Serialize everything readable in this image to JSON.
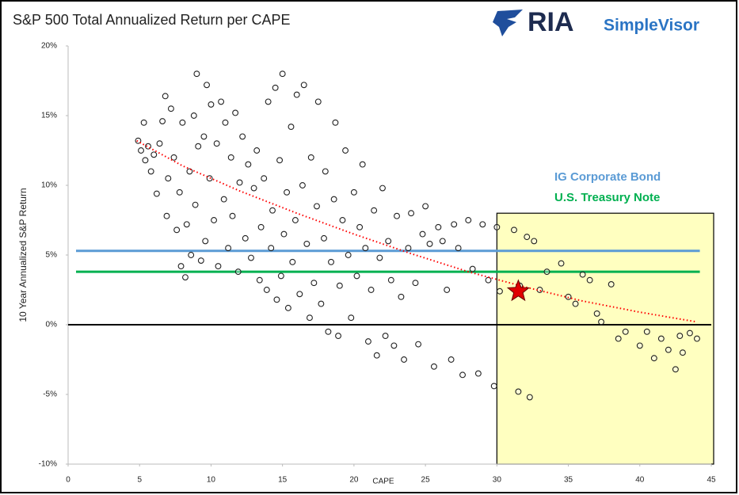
{
  "chart_data": {
    "type": "scatter",
    "title": "S&P 500 Total Annualized Return per CAPE",
    "logo": {
      "brand": "RIA",
      "product": "SimpleVisor"
    },
    "x_label": "CAPE",
    "y_label": "10 Year Annualized S&P Return",
    "xlim": [
      0,
      45
    ],
    "ylim": [
      -10,
      20
    ],
    "xticks": [
      0,
      5,
      10,
      15,
      20,
      25,
      30,
      35,
      40,
      45
    ],
    "yticks": [
      {
        "value": -10,
        "label": "-10%"
      },
      {
        "value": -5,
        "label": "-5%"
      },
      {
        "value": 0,
        "label": "0%"
      },
      {
        "value": 5,
        "label": "5%"
      },
      {
        "value": 10,
        "label": "10%"
      },
      {
        "value": 15,
        "label": "15%"
      },
      {
        "value": 20,
        "label": "20%"
      }
    ],
    "series": [
      {
        "color": "#222222",
        "x": [
          4.9,
          5.1,
          5.3,
          5.4,
          5.6,
          5.8,
          6.0,
          6.2,
          6.4,
          6.6,
          6.8,
          6.9,
          7.0,
          7.2,
          7.4,
          7.6,
          7.8,
          7.9,
          8.0,
          8.2,
          8.3,
          8.5,
          8.6,
          8.8,
          8.9,
          9.0,
          9.1,
          9.3,
          9.5,
          9.6,
          9.7,
          9.9,
          10.0,
          10.2,
          10.4,
          10.5,
          10.7,
          10.9,
          11.0,
          11.2,
          11.4,
          11.5,
          11.7,
          11.9,
          12.0,
          12.2,
          12.4,
          12.6,
          12.8,
          13.0,
          13.2,
          13.4,
          13.5,
          13.7,
          13.9,
          14.0,
          14.2,
          14.3,
          14.5,
          14.6,
          14.8,
          14.9,
          15.0,
          15.1,
          15.3,
          15.4,
          15.6,
          15.7,
          15.9,
          16.0,
          16.2,
          16.4,
          16.5,
          16.7,
          16.9,
          17.0,
          17.2,
          17.4,
          17.5,
          17.7,
          17.9,
          18.0,
          18.2,
          18.4,
          18.6,
          18.7,
          18.9,
          19.0,
          19.2,
          19.4,
          19.6,
          19.8,
          20.0,
          20.2,
          20.4,
          20.6,
          20.8,
          21.0,
          21.2,
          21.4,
          21.6,
          21.8,
          22.0,
          22.2,
          22.4,
          22.6,
          22.8,
          23.0,
          23.3,
          23.5,
          23.8,
          24.0,
          24.3,
          24.5,
          24.8,
          25.0,
          25.3,
          25.6,
          25.9,
          26.2,
          26.5,
          26.8,
          27.0,
          27.3,
          27.6,
          28.0,
          28.3,
          28.7,
          29.0,
          29.4,
          29.8,
          30.0,
          30.2,
          31.2,
          31.5,
          31.6,
          32.1,
          32.3,
          32.6,
          33.0,
          33.5,
          34.5,
          35.0,
          35.5,
          36.0,
          36.5,
          37.0,
          37.3,
          38.0,
          38.5,
          39.0,
          40.0,
          40.5,
          41.0,
          41.5,
          42.0,
          42.5,
          42.8,
          43.0,
          43.5,
          44.0
        ],
        "values": [
          13.2,
          12.5,
          14.5,
          11.8,
          12.8,
          11.0,
          12.2,
          9.4,
          13.0,
          14.6,
          16.4,
          7.8,
          10.5,
          15.5,
          12.0,
          6.8,
          9.5,
          4.2,
          14.5,
          3.4,
          7.2,
          11.0,
          5.0,
          15.0,
          8.6,
          18.0,
          12.8,
          4.6,
          13.5,
          6.0,
          17.2,
          10.5,
          15.8,
          7.5,
          13.0,
          4.2,
          16.0,
          9.0,
          14.5,
          5.5,
          12.0,
          7.8,
          15.2,
          3.8,
          10.2,
          13.5,
          6.2,
          11.5,
          4.8,
          9.8,
          12.5,
          3.2,
          7.0,
          10.5,
          2.5,
          16.0,
          5.5,
          8.2,
          17.0,
          1.8,
          11.8,
          3.5,
          18.0,
          6.5,
          9.5,
          1.2,
          14.2,
          4.5,
          7.5,
          16.5,
          2.2,
          10.0,
          17.2,
          5.8,
          0.5,
          12.0,
          3.0,
          8.5,
          16.0,
          1.5,
          6.2,
          11.0,
          -0.5,
          4.5,
          9.0,
          14.5,
          -0.8,
          2.8,
          7.5,
          12.5,
          5.0,
          0.5,
          9.5,
          3.5,
          7.0,
          11.5,
          5.5,
          -1.2,
          2.5,
          8.2,
          -2.2,
          4.8,
          9.8,
          -0.8,
          6.0,
          3.2,
          -1.5,
          7.8,
          2.0,
          -2.5,
          5.5,
          8.0,
          3.0,
          -1.4,
          6.5,
          8.5,
          5.8,
          -3.0,
          7.0,
          6.0,
          2.5,
          -2.5,
          7.2,
          5.5,
          -3.6,
          7.5,
          4.0,
          -3.5,
          7.2,
          3.2,
          -4.4,
          7.0,
          2.4,
          6.8,
          -4.8,
          2.8,
          6.3,
          -5.2,
          6.0,
          2.5,
          3.8,
          4.4,
          2.0,
          1.5,
          3.6,
          3.2,
          0.8,
          0.2,
          2.9,
          -1.0,
          -0.5,
          -1.5,
          -0.5,
          -2.4,
          -1.0,
          -1.8,
          -3.2,
          -0.8,
          -2.0,
          -0.6,
          -1.0
        ]
      }
    ],
    "trend": {
      "color": "#ff0000",
      "x": [
        4.8,
        8,
        12,
        16,
        20,
        24,
        28,
        32,
        36,
        40,
        44
      ],
      "values": [
        13.2,
        11.4,
        9.6,
        8.0,
        6.5,
        5.1,
        3.8,
        2.7,
        1.7,
        0.9,
        0.2
      ]
    },
    "reference_lines": [
      {
        "name": "IG Corporate Bond",
        "value": 5.3,
        "color": "#5b9bd5"
      },
      {
        "name": "U.S. Treasury Note",
        "value": 3.8,
        "color": "#00b050"
      }
    ],
    "highlight": {
      "xlim": [
        30,
        45
      ],
      "ylim": [
        -10,
        8
      ],
      "color": "#ffffc0"
    },
    "current": {
      "x": 31.5,
      "value": 2.4,
      "color": "#e00000"
    }
  }
}
